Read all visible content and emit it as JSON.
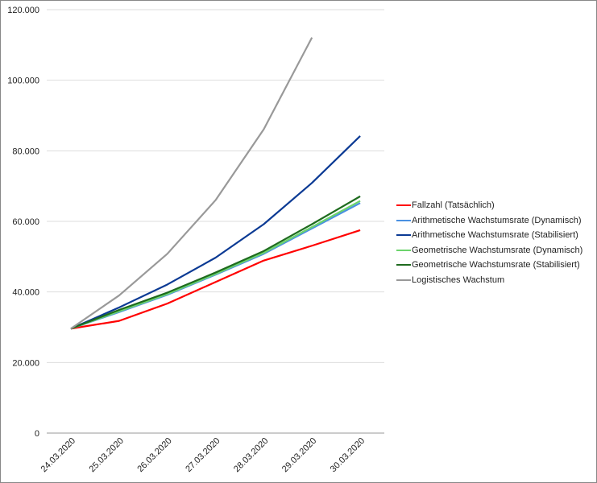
{
  "chart_data": {
    "type": "line",
    "title": "",
    "xlabel": "",
    "ylabel": "",
    "ylim": [
      0,
      120000
    ],
    "yticks": [
      "0",
      "20.000",
      "40.000",
      "60.000",
      "80.000",
      "100.000",
      "120.000"
    ],
    "ytick_values": [
      0,
      20000,
      40000,
      60000,
      80000,
      100000,
      120000
    ],
    "categories": [
      "24.03.2020",
      "25.03.2020",
      "26.03.2020",
      "27.03.2020",
      "28.03.2020",
      "29.03.2020",
      "30.03.2020"
    ],
    "grid": true,
    "legend_position": "right",
    "series": [
      {
        "name": "Fallzahl (Tatsächlich)",
        "color": "#ff0000",
        "values": [
          29600,
          31800,
          36700,
          42800,
          48900,
          53100,
          57500
        ]
      },
      {
        "name": "Arithmetische Wachstumsrate (Dynamisch)",
        "color": "#4a90e2",
        "values": [
          29600,
          34300,
          39200,
          44900,
          50800,
          58000,
          65200
        ]
      },
      {
        "name": "Arithmetische Wachstumsrate (Stabilisiert)",
        "color": "#0b3a94",
        "values": [
          29600,
          35600,
          42100,
          49700,
          59200,
          70900,
          84200
        ]
      },
      {
        "name": "Geometrische Wachstumsrate (Dynamisch)",
        "color": "#6cd46c",
        "values": [
          29600,
          34500,
          39400,
          45100,
          51100,
          58400,
          65800
        ]
      },
      {
        "name": "Geometrische Wachstumsrate (Stabilisiert)",
        "color": "#1e6b1e",
        "values": [
          29600,
          34900,
          39800,
          45500,
          51600,
          59200,
          67100
        ]
      },
      {
        "name": "Logistisches Wachstum",
        "color": "#999999",
        "values": [
          29600,
          39000,
          50800,
          66000,
          86100,
          112100,
          null
        ]
      }
    ]
  }
}
